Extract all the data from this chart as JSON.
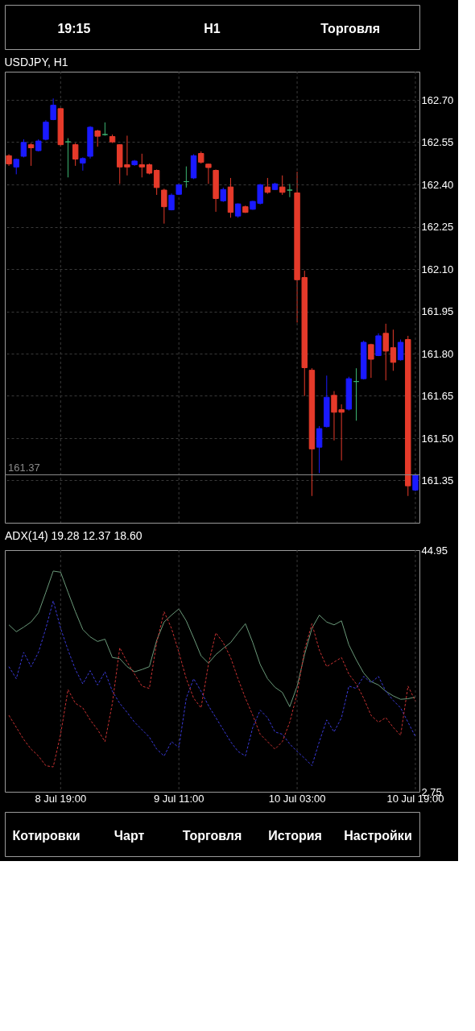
{
  "chart_data": [
    {
      "type": "other",
      "annotations": [
        "19:15",
        "H1",
        "Торговля"
      ]
    },
    {
      "type": "candlestick",
      "title": "USDJPY, H1",
      "tick_labels": "y",
      "grid": true,
      "categories": [
        null,
        null,
        null,
        null,
        null,
        null,
        null,
        null,
        null,
        null,
        null,
        null,
        null,
        null,
        null,
        null,
        null,
        null,
        null,
        null,
        null,
        null,
        null,
        null,
        null,
        null,
        null,
        null,
        null,
        null,
        null,
        null,
        null,
        null,
        null,
        null,
        null,
        null,
        null,
        null,
        null,
        null,
        null,
        null,
        null,
        null,
        null,
        null,
        null,
        null,
        null,
        null,
        null,
        null,
        null,
        null
      ],
      "ylim": [
        161.2,
        162.8
      ],
      "yticks": [
        {
          "value": 162.7,
          "label": "162.70"
        },
        162.55,
        {
          "value": 162.4,
          "label": "162.40"
        },
        162.25,
        {
          "value": 162.1,
          "label": "162.10"
        },
        161.95,
        {
          "value": 161.8,
          "label": "161.80"
        },
        161.65,
        {
          "value": 161.5,
          "label": "161.50"
        },
        161.35
      ],
      "ohlc": [
        [
          162.502,
          162.507,
          162.466,
          162.473
        ],
        [
          162.462,
          162.492,
          162.436,
          162.489
        ],
        [
          162.5,
          162.56,
          162.496,
          162.549
        ],
        [
          162.541,
          162.547,
          162.466,
          162.53
        ],
        [
          162.52,
          162.56,
          162.517,
          162.554
        ],
        [
          162.56,
          162.628,
          162.556,
          162.621
        ],
        [
          162.63,
          162.705,
          162.628,
          162.681
        ],
        [
          162.669,
          162.671,
          162.534,
          162.541
        ],
        [
          162.551,
          162.564,
          162.425,
          162.551
        ],
        [
          162.541,
          162.547,
          162.466,
          162.49
        ],
        [
          162.476,
          162.496,
          162.449,
          162.492
        ],
        [
          162.5,
          162.607,
          162.492,
          162.603
        ],
        [
          162.59,
          162.594,
          162.534,
          162.571
        ],
        [
          162.577,
          162.62,
          162.573,
          162.577
        ],
        [
          162.57,
          162.577,
          162.547,
          162.551
        ],
        [
          162.541,
          162.543,
          162.402,
          162.462
        ],
        [
          162.47,
          162.573,
          162.432,
          162.462
        ],
        [
          162.47,
          162.487,
          162.466,
          162.483
        ],
        [
          162.47,
          162.509,
          162.425,
          162.462
        ],
        [
          162.47,
          162.474,
          162.436,
          162.44
        ],
        [
          162.45,
          162.453,
          162.363,
          162.389
        ],
        [
          162.38,
          162.385,
          162.261,
          162.321
        ],
        [
          162.31,
          162.368,
          162.308,
          162.362
        ],
        [
          162.365,
          162.403,
          162.363,
          162.399
        ],
        [
          162.41,
          162.464,
          162.389,
          162.41
        ],
        [
          162.423,
          162.507,
          162.419,
          162.502
        ],
        [
          162.51,
          162.517,
          162.474,
          162.479
        ],
        [
          162.472,
          162.474,
          162.402,
          162.46
        ],
        [
          162.45,
          162.453,
          162.303,
          162.35
        ],
        [
          162.342,
          162.389,
          162.338,
          162.382
        ],
        [
          162.391,
          162.423,
          162.282,
          162.301
        ],
        [
          162.288,
          162.333,
          162.282,
          162.331
        ],
        [
          162.321,
          162.325,
          162.299,
          162.301
        ],
        [
          162.312,
          162.342,
          162.31,
          162.34
        ],
        [
          162.333,
          162.402,
          162.329,
          162.399
        ],
        [
          162.391,
          162.423,
          162.367,
          162.372
        ],
        [
          162.382,
          162.406,
          162.38,
          162.402
        ],
        [
          162.391,
          162.432,
          162.363,
          162.372
        ],
        [
          162.38,
          162.402,
          162.355,
          162.38
        ],
        [
          162.37,
          162.445,
          161.91,
          162.062
        ],
        [
          162.07,
          162.094,
          161.65,
          161.75
        ],
        [
          161.741,
          161.748,
          161.295,
          161.462
        ],
        [
          161.468,
          161.543,
          161.376,
          161.534
        ],
        [
          161.541,
          161.722,
          161.538,
          161.645
        ],
        [
          161.652,
          161.667,
          161.492,
          161.592
        ],
        [
          161.601,
          161.62,
          161.421,
          161.592
        ],
        [
          161.603,
          161.718,
          161.598,
          161.711
        ],
        [
          161.701,
          161.748,
          161.562,
          161.701
        ],
        [
          161.711,
          161.846,
          161.708,
          161.84
        ],
        [
          161.832,
          161.835,
          161.714,
          161.78
        ],
        [
          161.793,
          161.872,
          161.791,
          161.863
        ],
        [
          161.872,
          161.906,
          161.705,
          161.809
        ],
        [
          161.821,
          161.885,
          161.739,
          161.769
        ],
        [
          161.778,
          161.85,
          161.775,
          161.84
        ],
        [
          161.85,
          161.863,
          161.295,
          161.331
        ],
        [
          161.316,
          161.376,
          161.312,
          161.37
        ]
      ],
      "colors": [
        "#e53a2a",
        "#1a1aff",
        "#1a1aff",
        "#e53a2a",
        "#1a1aff",
        "#1a1aff",
        "#1a1aff",
        "#e53a2a",
        "#3cb371",
        "#e53a2a",
        "#1a1aff",
        "#1a1aff",
        "#e53a2a",
        "#3cb371",
        "#e53a2a",
        "#e53a2a",
        "#e53a2a",
        "#1a1aff",
        "#e53a2a",
        "#e53a2a",
        "#e53a2a",
        "#e53a2a",
        "#1a1aff",
        "#1a1aff",
        "#3cb371",
        "#1a1aff",
        "#e53a2a",
        "#e53a2a",
        "#e53a2a",
        "#1a1aff",
        "#e53a2a",
        "#1a1aff",
        "#e53a2a",
        "#1a1aff",
        "#1a1aff",
        "#e53a2a",
        "#1a1aff",
        "#e53a2a",
        "#3cb371",
        "#e53a2a",
        "#e53a2a",
        "#e53a2a",
        "#1a1aff",
        "#1a1aff",
        "#e53a2a",
        "#e53a2a",
        "#1a1aff",
        "#3cb371",
        "#1a1aff",
        "#e53a2a",
        "#1a1aff",
        "#e53a2a",
        "#e53a2a",
        "#1a1aff",
        "#e53a2a",
        "#1a1aff"
      ],
      "ref_lines": [
        {
          "axis": "y",
          "value": 161.37,
          "label": "161.37",
          "color": "#8a8a8a"
        }
      ]
    },
    {
      "type": "line",
      "title": "ADX(14) 19.28 12.37 18.60",
      "grid": "x",
      "categories": [
        null,
        null,
        null,
        null,
        null,
        null,
        null,
        "8 Jul 19:00",
        null,
        null,
        null,
        null,
        null,
        null,
        null,
        null,
        null,
        null,
        null,
        null,
        null,
        null,
        null,
        "9 Jul 11:00",
        null,
        null,
        null,
        null,
        null,
        null,
        null,
        null,
        null,
        null,
        null,
        null,
        null,
        null,
        null,
        "10 Jul 03:00",
        null,
        null,
        null,
        null,
        null,
        null,
        null,
        null,
        null,
        null,
        null,
        null,
        null,
        null,
        null,
        "10 Jul 19:00"
      ],
      "ylim": [
        2.75,
        44.95
      ],
      "yticks": [
        44.95,
        2.75
      ],
      "series": [
        {
          "color": "#6b9a7a",
          "line_style": "solid",
          "values": [
            31.9,
            30.7,
            31.5,
            32.4,
            34.0,
            37.6,
            41.3,
            41.1,
            37.6,
            34.2,
            31.1,
            29.8,
            29.0,
            29.4,
            26.2,
            26.0,
            24.6,
            23.7,
            24.1,
            24.6,
            29.2,
            32.4,
            33.6,
            34.7,
            32.6,
            29.6,
            26.5,
            25.2,
            26.7,
            27.8,
            28.8,
            30.5,
            32.1,
            28.8,
            25.0,
            22.5,
            21.0,
            20.1,
            17.6,
            21.2,
            26.7,
            31.3,
            33.6,
            32.4,
            31.9,
            32.6,
            28.4,
            25.8,
            23.5,
            22.0,
            21.4,
            20.3,
            19.5,
            18.9,
            19.0,
            19.3
          ]
        },
        {
          "color": "#3a3ad8",
          "line_style": "dashed",
          "values": [
            24.6,
            22.5,
            27.1,
            24.6,
            27.1,
            31.3,
            36.1,
            31.3,
            27.5,
            24.1,
            21.6,
            23.9,
            21.4,
            23.7,
            20.3,
            18.2,
            16.6,
            14.9,
            13.6,
            12.3,
            10.2,
            9.0,
            11.5,
            10.5,
            19.1,
            22.5,
            20.3,
            17.8,
            15.7,
            13.6,
            11.5,
            9.8,
            9.0,
            14.0,
            17.0,
            15.7,
            13.2,
            12.8,
            11.1,
            9.8,
            8.6,
            7.3,
            11.5,
            15.3,
            13.2,
            15.7,
            21.2,
            20.8,
            22.9,
            21.8,
            22.9,
            20.3,
            18.7,
            17.4,
            14.9,
            12.4
          ]
        },
        {
          "color": "#c83232",
          "line_style": "dashed",
          "values": [
            16.1,
            14.0,
            11.9,
            10.2,
            9.0,
            7.3,
            7.1,
            12.8,
            20.6,
            18.2,
            17.4,
            15.3,
            13.6,
            11.5,
            18.2,
            27.9,
            25.4,
            23.3,
            21.2,
            20.8,
            28.8,
            34.2,
            31.3,
            27.1,
            22.5,
            19.1,
            17.4,
            25.0,
            30.5,
            28.8,
            26.2,
            22.5,
            19.1,
            16.1,
            12.8,
            11.5,
            10.2,
            11.5,
            14.9,
            19.9,
            27.5,
            32.1,
            27.5,
            24.6,
            25.4,
            26.2,
            23.3,
            21.6,
            19.1,
            16.1,
            14.9,
            15.7,
            14.0,
            12.6,
            21.2,
            18.6
          ]
        }
      ]
    },
    {
      "type": "other",
      "annotations": [
        "Котировки",
        "Чарт",
        "Торговля",
        "История",
        "Настройки"
      ]
    }
  ]
}
